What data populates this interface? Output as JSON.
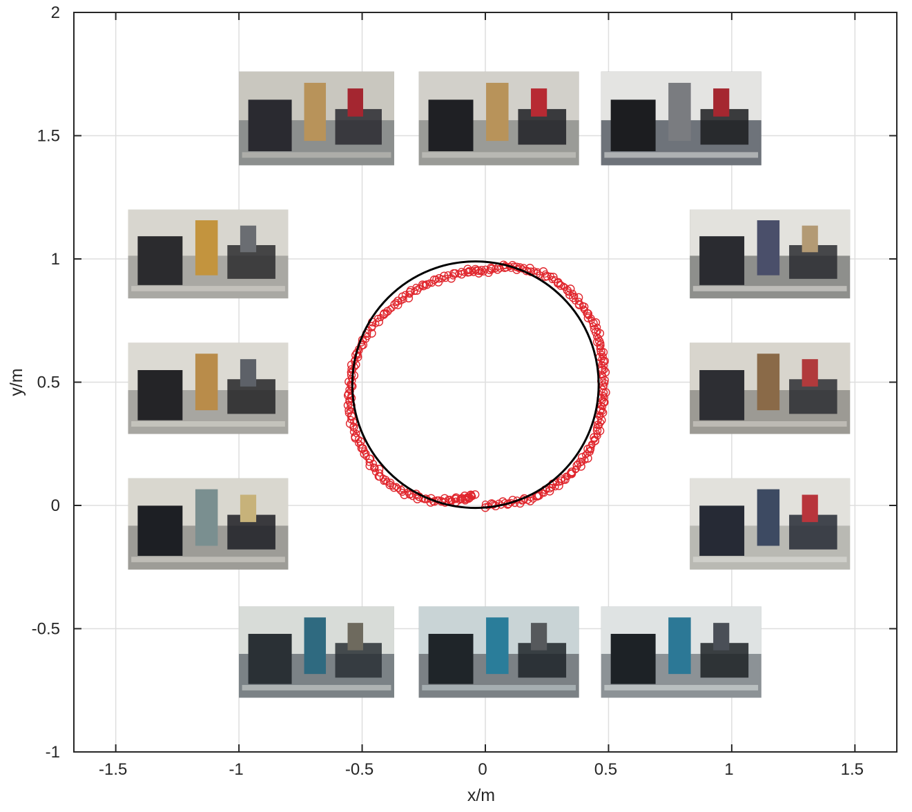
{
  "chart_data": {
    "type": "scatter",
    "title": "",
    "xlabel": "x/m",
    "ylabel": "y/m",
    "xlim": [
      -1.67,
      1.67
    ],
    "ylim": [
      -1,
      2
    ],
    "xticks": [
      -1.5,
      -1,
      -0.5,
      0,
      0.5,
      1,
      1.5
    ],
    "xtick_labels": [
      "-1.5",
      "-1",
      "-0.5",
      "0",
      "0.5",
      "1",
      "1.5"
    ],
    "yticks": [
      -1,
      -0.5,
      0,
      0.5,
      1,
      1.5,
      2
    ],
    "ytick_labels": [
      "-1",
      "-0.5",
      "0",
      "0.5",
      "1",
      "1.5",
      "2"
    ],
    "grid": true,
    "reference_circle": {
      "center": [
        -0.04,
        0.49
      ],
      "radius": 0.5,
      "color": "#000000"
    },
    "trajectory": {
      "color": "#e0262d",
      "marker": "circle",
      "points": [
        [
          0.0,
          0.0
        ],
        [
          0.1,
          0.01
        ],
        [
          0.2,
          0.03
        ],
        [
          0.28,
          0.08
        ],
        [
          0.35,
          0.13
        ],
        [
          0.41,
          0.2
        ],
        [
          0.45,
          0.28
        ],
        [
          0.47,
          0.37
        ],
        [
          0.48,
          0.45
        ],
        [
          0.48,
          0.55
        ],
        [
          0.47,
          0.63
        ],
        [
          0.45,
          0.72
        ],
        [
          0.4,
          0.8
        ],
        [
          0.34,
          0.87
        ],
        [
          0.26,
          0.93
        ],
        [
          0.16,
          0.96
        ],
        [
          0.08,
          0.97
        ],
        [
          -0.01,
          0.95
        ],
        [
          -0.08,
          0.95
        ],
        [
          -0.18,
          0.92
        ],
        [
          -0.28,
          0.88
        ],
        [
          -0.36,
          0.82
        ],
        [
          -0.45,
          0.74
        ],
        [
          -0.51,
          0.64
        ],
        [
          -0.54,
          0.55
        ],
        [
          -0.55,
          0.46
        ],
        [
          -0.55,
          0.37
        ],
        [
          -0.52,
          0.27
        ],
        [
          -0.47,
          0.18
        ],
        [
          -0.41,
          0.1
        ],
        [
          -0.32,
          0.05
        ],
        [
          -0.23,
          0.02
        ],
        [
          -0.14,
          0.02
        ],
        [
          -0.08,
          0.03
        ],
        [
          -0.05,
          0.04
        ]
      ]
    },
    "photos": [
      {
        "name": "photo-top-1",
        "x": [
          -1.0,
          -0.37
        ],
        "y": [
          1.38,
          1.76
        ],
        "palette": [
          "#8c8f8e",
          "#c9c7bf",
          "#2a2a30",
          "#b8935a",
          "#a42630"
        ]
      },
      {
        "name": "photo-top-2",
        "x": [
          -0.27,
          0.38
        ],
        "y": [
          1.38,
          1.76
        ],
        "palette": [
          "#9a9b97",
          "#d2d0ca",
          "#1f2024",
          "#b8935a",
          "#b72a33"
        ]
      },
      {
        "name": "photo-top-3",
        "x": [
          0.47,
          1.12
        ],
        "y": [
          1.38,
          1.76
        ],
        "palette": [
          "#6f737a",
          "#e4e4e2",
          "#1c1d20",
          "#7a7c80",
          "#a52730"
        ]
      },
      {
        "name": "photo-left-1",
        "x": [
          -1.45,
          -0.8
        ],
        "y": [
          0.84,
          1.2
        ],
        "palette": [
          "#a9a8a3",
          "#d8d6cf",
          "#2b2b2e",
          "#c3943e",
          "#6a6d72"
        ]
      },
      {
        "name": "photo-left-2",
        "x": [
          -1.45,
          -0.8
        ],
        "y": [
          0.29,
          0.66
        ],
        "palette": [
          "#a7a6a1",
          "#dcdad3",
          "#242427",
          "#b98c4a",
          "#5d6168"
        ]
      },
      {
        "name": "photo-left-3",
        "x": [
          -1.45,
          -0.8
        ],
        "y": [
          -0.26,
          0.11
        ],
        "palette": [
          "#9d9c97",
          "#d9d7cf",
          "#1d1f24",
          "#7a8f90",
          "#c7b27a"
        ]
      },
      {
        "name": "photo-right-1",
        "x": [
          0.83,
          1.48
        ],
        "y": [
          0.84,
          1.2
        ],
        "palette": [
          "#8e8f8c",
          "#e3e2dd",
          "#2a2b30",
          "#4a4f6a",
          "#b39a74"
        ]
      },
      {
        "name": "photo-right-2",
        "x": [
          0.83,
          1.48
        ],
        "y": [
          0.29,
          0.66
        ],
        "palette": [
          "#9c9a94",
          "#d8d5cd",
          "#2d2e33",
          "#8a6a48",
          "#b13a3c"
        ]
      },
      {
        "name": "photo-right-3",
        "x": [
          0.83,
          1.48
        ],
        "y": [
          -0.26,
          0.11
        ],
        "palette": [
          "#b9b8b3",
          "#e2e1dc",
          "#262a35",
          "#3d4a62",
          "#b8353c"
        ]
      },
      {
        "name": "photo-bottom-1",
        "x": [
          -1.0,
          -0.37
        ],
        "y": [
          -0.78,
          -0.41
        ],
        "palette": [
          "#7b8286",
          "#d8dcd8",
          "#2a3035",
          "#2f6a80",
          "#6e6a5e"
        ]
      },
      {
        "name": "photo-bottom-2",
        "x": [
          -0.27,
          0.38
        ],
        "y": [
          -0.78,
          -0.41
        ],
        "palette": [
          "#7b8185",
          "#c9d4d6",
          "#1f2529",
          "#2a7d9a",
          "#56595c"
        ]
      },
      {
        "name": "photo-bottom-3",
        "x": [
          0.47,
          1.12
        ],
        "y": [
          -0.78,
          -0.41
        ],
        "palette": [
          "#8c9296",
          "#dfe3e3",
          "#1d2226",
          "#2c7896",
          "#4a4f57"
        ]
      }
    ]
  }
}
